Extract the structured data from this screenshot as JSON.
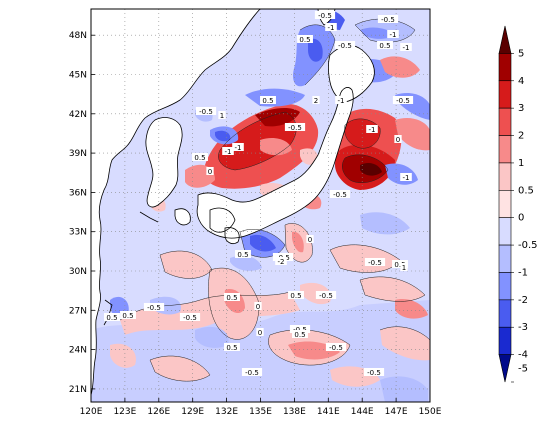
{
  "map": {
    "lon_labels": [
      "120E",
      "123E",
      "126E",
      "129E",
      "132E",
      "135E",
      "138E",
      "141E",
      "144E",
      "147E",
      "150E"
    ],
    "lat_labels": [
      "48N",
      "45N",
      "42N",
      "39N",
      "36N",
      "33N",
      "30N",
      "27N",
      "24N",
      "21N"
    ],
    "lon_values": [
      120,
      123,
      126,
      129,
      132,
      135,
      138,
      141,
      144,
      147,
      150
    ],
    "lat_values": [
      48,
      45,
      42,
      39,
      36,
      33,
      30,
      27,
      24,
      21
    ],
    "lon_range": [
      120,
      150
    ],
    "lat_range": [
      20,
      50
    ],
    "gridlines": "dotted",
    "land_color": "#ffffff",
    "coastline_color": "#000000"
  },
  "colorbar": {
    "labels": [
      "5",
      "4",
      "3",
      "2",
      "1",
      "0.5",
      "0",
      "-0.5",
      "-1",
      "-2",
      "-3",
      "-4",
      "-5"
    ],
    "colors": [
      "#5a0000",
      "#a00000",
      "#d61b1b",
      "#ee5050",
      "#f78a8a",
      "#fbc6c6",
      "#ffe3e3",
      "#d8dcff",
      "#b4beff",
      "#8292ff",
      "#4a5cf0",
      "#1a2ad0",
      "#000a8a"
    ],
    "extend": "both"
  },
  "contour_labels": [
    {
      "text": "-0.5"
    },
    {
      "text": "-1"
    },
    {
      "text": "-0.5"
    },
    {
      "text": "-1"
    },
    {
      "text": "0.5"
    },
    {
      "text": "0.5"
    },
    {
      "text": "-0.5"
    },
    {
      "text": "-1"
    },
    {
      "text": "2"
    },
    {
      "text": "-1"
    },
    {
      "text": "-0.5"
    },
    {
      "text": "-1"
    },
    {
      "text": "0"
    },
    {
      "text": "0.5"
    },
    {
      "text": "-0.5"
    },
    {
      "text": "1"
    },
    {
      "text": "0.5"
    },
    {
      "text": "-1"
    },
    {
      "text": "-0.5"
    },
    {
      "text": "0"
    },
    {
      "text": "-0.5"
    },
    {
      "text": "0.5"
    },
    {
      "text": "-0.5"
    },
    {
      "text": "-2"
    },
    {
      "text": "0"
    },
    {
      "text": "-0.5"
    },
    {
      "text": "0.5"
    },
    {
      "text": "0"
    },
    {
      "text": "0.5"
    },
    {
      "text": "-0.5"
    },
    {
      "text": "0.5"
    },
    {
      "text": "0.5"
    },
    {
      "text": "-0.5"
    },
    {
      "text": "0"
    },
    {
      "text": "-0.5"
    },
    {
      "text": "-0.5"
    },
    {
      "text": "0.5"
    },
    {
      "text": "0.5"
    },
    {
      "text": "-0.5"
    },
    {
      "text": "1"
    },
    {
      "text": "-0.5"
    },
    {
      "text": "-0.5"
    },
    {
      "text": "0.5"
    },
    {
      "text": "-1"
    },
    {
      "text": "-1"
    }
  ]
}
